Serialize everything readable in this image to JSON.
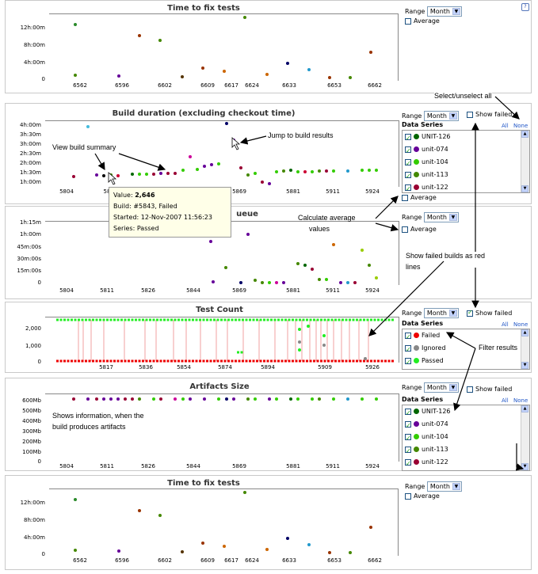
{
  "common": {
    "range_label": "Range",
    "range_value": "Month",
    "average_label": "Average",
    "show_failed_label": "Show failed",
    "data_series_label": "Data Series",
    "all_label": "All",
    "none_label": "None"
  },
  "panels": [
    {
      "title": "Time to fix tests",
      "yticks": [
        "12h:00m",
        "8h:00m",
        "4h:00m",
        "0"
      ],
      "xticks": [
        "6562",
        "6596",
        "6602",
        "6609",
        "6617",
        "6624",
        "6633",
        "6653",
        "6662"
      ]
    },
    {
      "title": "Build duration (excluding checkout time)",
      "yticks": [
        "4h:00m",
        "3h:30m",
        "3h:00m",
        "2h:30m",
        "2h:00m",
        "1h:30m",
        "1h:00m"
      ],
      "xticks": [
        "5804",
        "58",
        "5869",
        "5881",
        "5911",
        "5924"
      ],
      "series": [
        {
          "name": "UNIT-126",
          "color": "#006600"
        },
        {
          "name": "unit-074",
          "color": "#660099"
        },
        {
          "name": "unit-104",
          "color": "#33cc00"
        },
        {
          "name": "unit-113",
          "color": "#448800"
        },
        {
          "name": "unit-122",
          "color": "#990033"
        }
      ]
    },
    {
      "title": "ueue",
      "yticks": [
        "1h:15m",
        "1h:00m",
        "45m:00s",
        "30m:00s",
        "15m:00s",
        "0"
      ],
      "xticks": [
        "5804",
        "5811",
        "5826",
        "5844",
        "5869",
        "5881",
        "5911",
        "5924"
      ]
    },
    {
      "title": "Test Count",
      "yticks": [
        "2,000",
        "1,000",
        "0"
      ],
      "xticks": [
        "5817",
        "5836",
        "5854",
        "5874",
        "5894",
        "5909",
        "5926"
      ],
      "series": [
        {
          "name": "Failed",
          "color": "#ee0000"
        },
        {
          "name": "Ignored",
          "color": "#888888"
        },
        {
          "name": "Passed",
          "color": "#22ee22"
        }
      ]
    },
    {
      "title": "Artifacts Size",
      "yticks": [
        "600Mb",
        "500Mb",
        "400Mb",
        "300Mb",
        "200Mb",
        "100Mb",
        "0"
      ],
      "xticks": [
        "5804",
        "5811",
        "5826",
        "5844",
        "5869",
        "5881",
        "5911",
        "5924"
      ],
      "series": [
        {
          "name": "UNIT-126",
          "color": "#006600"
        },
        {
          "name": "unit-074",
          "color": "#660099"
        },
        {
          "name": "unit-104",
          "color": "#33cc00"
        },
        {
          "name": "unit-113",
          "color": "#448800"
        },
        {
          "name": "unit-122",
          "color": "#990033"
        }
      ]
    },
    {
      "title": "Time to fix tests",
      "yticks": [
        "12h:00m",
        "8h:00m",
        "4h:00m",
        "0"
      ],
      "xticks": [
        "6562",
        "6596",
        "6602",
        "6609",
        "6617",
        "6624",
        "6633",
        "6653",
        "6662"
      ]
    }
  ],
  "tooltip": {
    "value_label": "Value:",
    "value": "2,646",
    "build": "Build: #5843, Failed",
    "started": "Started: 12-Nov-2007 11:56:23",
    "series": "Series: Passed"
  },
  "annotations": {
    "select_all": "Select/unselect all",
    "view_summary": "View build summary",
    "jump": "Jump to build results",
    "calc_avg_1": "Calculate average",
    "calc_avg_2": "values",
    "show_failed_1": "Show failed builds as red",
    "show_failed_2": "lines",
    "filter": "Filter results",
    "artifacts_1": "Shows information, when the",
    "artifacts_2": "build produces artifacts"
  },
  "help_icon": "?"
}
